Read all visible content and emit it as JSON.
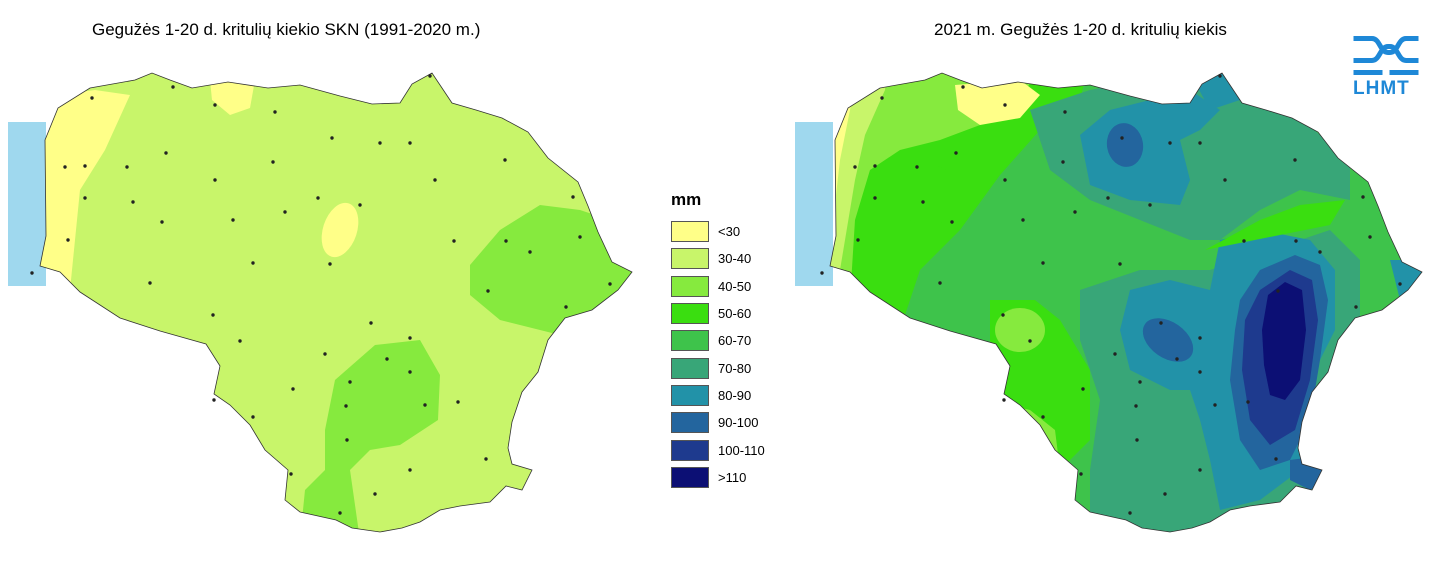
{
  "maps": {
    "left": {
      "title": "Gegužės 1-20 d. kritulių kiekio SKN (1991-2020 m.)"
    },
    "right": {
      "title": "2021 m. Gegužės 1-20 d. kritulių kiekis"
    }
  },
  "legend": {
    "unit": "mm",
    "items": [
      {
        "label": "<30",
        "color": "#ffff88"
      },
      {
        "label": "30-40",
        "color": "#c8f56a"
      },
      {
        "label": "40-50",
        "color": "#86ea3e"
      },
      {
        "label": "50-60",
        "color": "#3ade10"
      },
      {
        "label": "60-70",
        "color": "#3ec34b"
      },
      {
        "label": "70-80",
        "color": "#38a678"
      },
      {
        "label": "80-90",
        "color": "#2292a8"
      },
      {
        "label": "90-100",
        "color": "#23659e"
      },
      {
        "label": "100-110",
        "color": "#1e3a8e"
      },
      {
        "label": ">110",
        "color": "#0c0f74"
      }
    ]
  },
  "sea_color": "#9fd8ee",
  "logo": {
    "text": "LHMT",
    "color": "#1e88d7"
  }
}
